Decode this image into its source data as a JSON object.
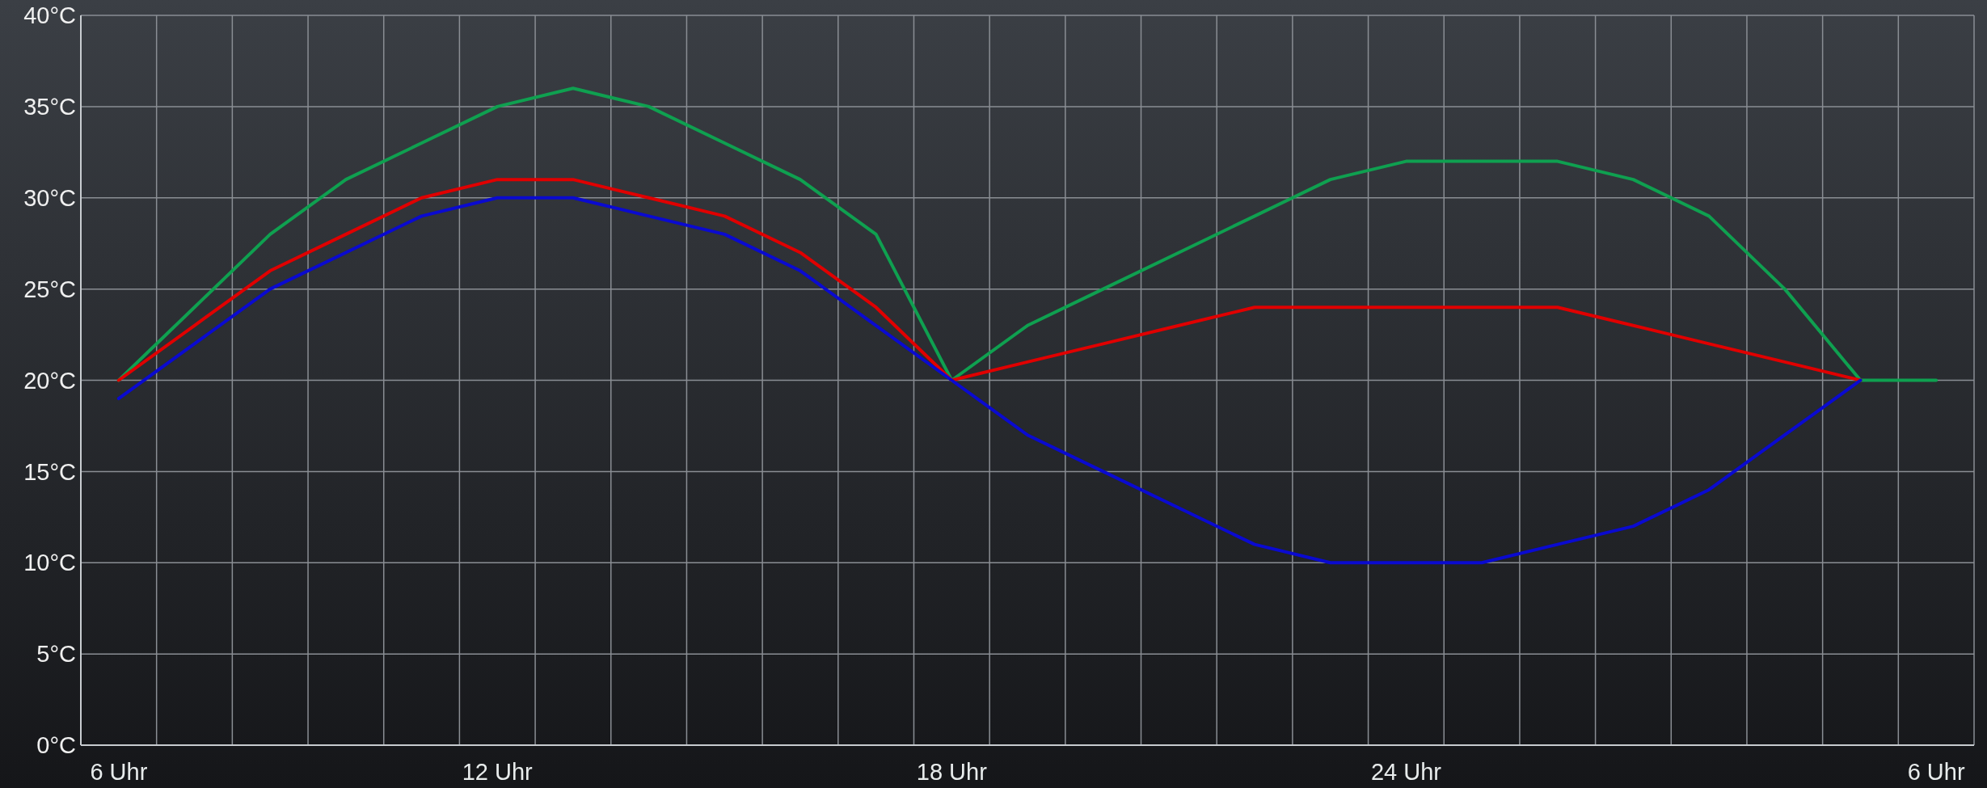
{
  "chart_data": {
    "type": "line",
    "categories": [
      "6 Uhr",
      null,
      null,
      null,
      null,
      "12 Uhr",
      null,
      null,
      null,
      null,
      null,
      "18 Uhr",
      null,
      null,
      null,
      null,
      null,
      "24 Uhr",
      null,
      null,
      null,
      null,
      null,
      null,
      "6 Uhr"
    ],
    "series": [
      {
        "color": "#0fa050",
        "values": [
          20,
          24,
          28,
          31,
          33,
          35,
          36,
          35,
          33,
          31,
          28,
          20,
          23,
          25,
          27,
          29,
          31,
          32,
          32,
          32,
          31,
          29,
          25,
          20,
          20
        ]
      },
      {
        "color": "#e00000",
        "values": [
          20,
          23,
          26,
          28,
          30,
          31,
          31,
          30,
          29,
          27,
          24,
          20,
          21,
          22,
          23,
          24,
          24,
          24,
          24,
          24,
          23,
          22,
          21,
          20,
          null
        ]
      },
      {
        "color": "#0a0ad0",
        "values": [
          19,
          22,
          25,
          27,
          29,
          30,
          30,
          29,
          28,
          26,
          23,
          20,
          17,
          15,
          13,
          11,
          10,
          10,
          10,
          11,
          12,
          14,
          17,
          20,
          null
        ]
      }
    ],
    "ylim": [
      0,
      40
    ],
    "yticks": [
      {
        "value": 0,
        "label": "0°C"
      },
      {
        "value": 5,
        "label": "5°C"
      },
      {
        "value": 10,
        "label": "10°C"
      },
      {
        "value": 15,
        "label": "15°C"
      },
      {
        "value": 20,
        "label": "20°C"
      },
      {
        "value": 25,
        "label": "25°C"
      },
      {
        "value": 30,
        "label": "30°C"
      },
      {
        "value": 35,
        "label": "35°C"
      },
      {
        "value": 40,
        "label": "40°C"
      }
    ],
    "grid": true,
    "marker": "none",
    "line_style": "solid"
  }
}
